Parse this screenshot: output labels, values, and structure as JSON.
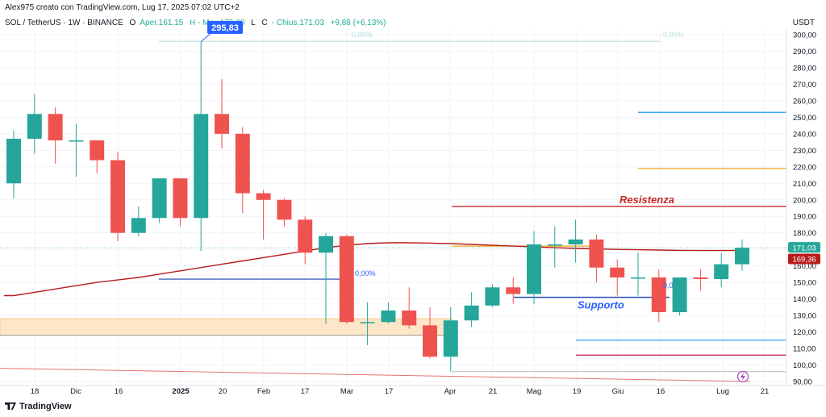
{
  "header": {
    "credit": "Alex975 creato con TradingView.com, Lug 17, 2025 07:02 UTC+2",
    "symbol": "SOL / TetherUS · 1W · BINANCE",
    "open_label": "O",
    "open": "Aper.161,15",
    "high": "H - Max.176,00",
    "low": "L",
    "close_label": "C",
    "close": "- Chius.171,03",
    "change": "+9,88 (+6,13%)"
  },
  "footer": {
    "logo_text": "TradingView"
  },
  "colors": {
    "up": "#26a69a",
    "down": "#ef5350",
    "ma": "#b71c1c",
    "resistance": "#c62828",
    "support": "#1e40af",
    "fib_blue": "#2962ff",
    "orange": "#f5a623",
    "cyan": "#2196f3",
    "magenta": "#c2185b",
    "zone": "#fde7c8"
  },
  "chart_data": {
    "type": "candlestick",
    "unit": "USDT",
    "ylim": [
      88,
      305
    ],
    "y_ticks": [
      90,
      100,
      110,
      120,
      130,
      140,
      150,
      160,
      170,
      180,
      190,
      200,
      210,
      220,
      230,
      240,
      250,
      260,
      270,
      280,
      290,
      300
    ],
    "x_labels": [
      "18",
      "Dic",
      "16",
      "2025",
      "20",
      "Feb",
      "17",
      "Mar",
      "17",
      "Apr",
      "21",
      "Mag",
      "19",
      "Giu",
      "16",
      "Lug",
      "21"
    ],
    "candles": [
      {
        "o": 210,
        "h": 242,
        "l": 201,
        "c": 237
      },
      {
        "o": 237,
        "h": 264,
        "l": 228,
        "c": 252
      },
      {
        "o": 252,
        "h": 256,
        "l": 222,
        "c": 236
      },
      {
        "o": 236,
        "h": 246,
        "l": 214,
        "c": 236
      },
      {
        "o": 236,
        "h": 236,
        "l": 216,
        "c": 224
      },
      {
        "o": 224,
        "h": 229,
        "l": 175,
        "c": 180
      },
      {
        "o": 180,
        "h": 196,
        "l": 178,
        "c": 189
      },
      {
        "o": 189,
        "h": 212,
        "l": 186,
        "c": 213
      },
      {
        "o": 213,
        "h": 213,
        "l": 184,
        "c": 189
      },
      {
        "o": 189,
        "h": 295.83,
        "l": 169,
        "c": 252
      },
      {
        "o": 252,
        "h": 273,
        "l": 231,
        "c": 240
      },
      {
        "o": 240,
        "h": 244,
        "l": 192,
        "c": 204
      },
      {
        "o": 204,
        "h": 206,
        "l": 176,
        "c": 200
      },
      {
        "o": 200,
        "h": 201,
        "l": 184,
        "c": 188
      },
      {
        "o": 188,
        "h": 190,
        "l": 161,
        "c": 168
      },
      {
        "o": 168,
        "h": 180,
        "l": 125,
        "c": 178
      },
      {
        "o": 178,
        "h": 179,
        "l": 125,
        "c": 126
      },
      {
        "o": 126,
        "h": 138,
        "l": 112,
        "c": 126
      },
      {
        "o": 126,
        "h": 138,
        "l": 125,
        "c": 133
      },
      {
        "o": 133,
        "h": 147,
        "l": 122,
        "c": 124
      },
      {
        "o": 124,
        "h": 135,
        "l": 104,
        "c": 105
      },
      {
        "o": 105,
        "h": 135,
        "l": 96,
        "c": 127
      },
      {
        "o": 127,
        "h": 144,
        "l": 123,
        "c": 136
      },
      {
        "o": 136,
        "h": 149,
        "l": 135,
        "c": 147
      },
      {
        "o": 147,
        "h": 153,
        "l": 137,
        "c": 143
      },
      {
        "o": 143,
        "h": 181,
        "l": 137,
        "c": 173
      },
      {
        "o": 173,
        "h": 184,
        "l": 159,
        "c": 173
      },
      {
        "o": 173,
        "h": 188,
        "l": 162,
        "c": 176
      },
      {
        "o": 176,
        "h": 179,
        "l": 150,
        "c": 159
      },
      {
        "o": 159,
        "h": 164,
        "l": 142,
        "c": 153
      },
      {
        "o": 153,
        "h": 168,
        "l": 142,
        "c": 153
      },
      {
        "o": 153,
        "h": 158,
        "l": 126,
        "c": 132
      },
      {
        "o": 132,
        "h": 153,
        "l": 130,
        "c": 153
      },
      {
        "o": 153,
        "h": 158,
        "l": 145,
        "c": 152
      },
      {
        "o": 152,
        "h": 168,
        "l": 147,
        "c": 161
      },
      {
        "o": 161,
        "h": 176,
        "l": 157,
        "c": 171.03
      }
    ],
    "moving_average": [
      142,
      144,
      146,
      148,
      150,
      151.5,
      153,
      155,
      157,
      159,
      161,
      163,
      165,
      167,
      169,
      171,
      172.5,
      173.5,
      174,
      174,
      173.8,
      173.5,
      173,
      172.5,
      172,
      171.5,
      171,
      170.6,
      170.3,
      170,
      169.8,
      169.6,
      169.4,
      169.3,
      169.3,
      169.36
    ],
    "annotations": {
      "high_label": "295,83",
      "fib_label_1": "0,00%",
      "fib_label_2": "0,00%",
      "fib_label_3": "0,00%",
      "fib_label_4": "0,0",
      "resistance_label": "Resistenza",
      "support_label": "Supporto",
      "last_price": "171,03",
      "ma_price": "169,36"
    },
    "levels": {
      "top_dashed": 296,
      "resistance": 196,
      "support": 141,
      "fib_blue_left": 152,
      "orange_mid": 172,
      "cyan_right": 253,
      "orange_right": 219,
      "cyan_low": 115,
      "magenta_low": 106,
      "gray_low": 96,
      "zone_top": 128,
      "zone_bottom": 118
    }
  }
}
